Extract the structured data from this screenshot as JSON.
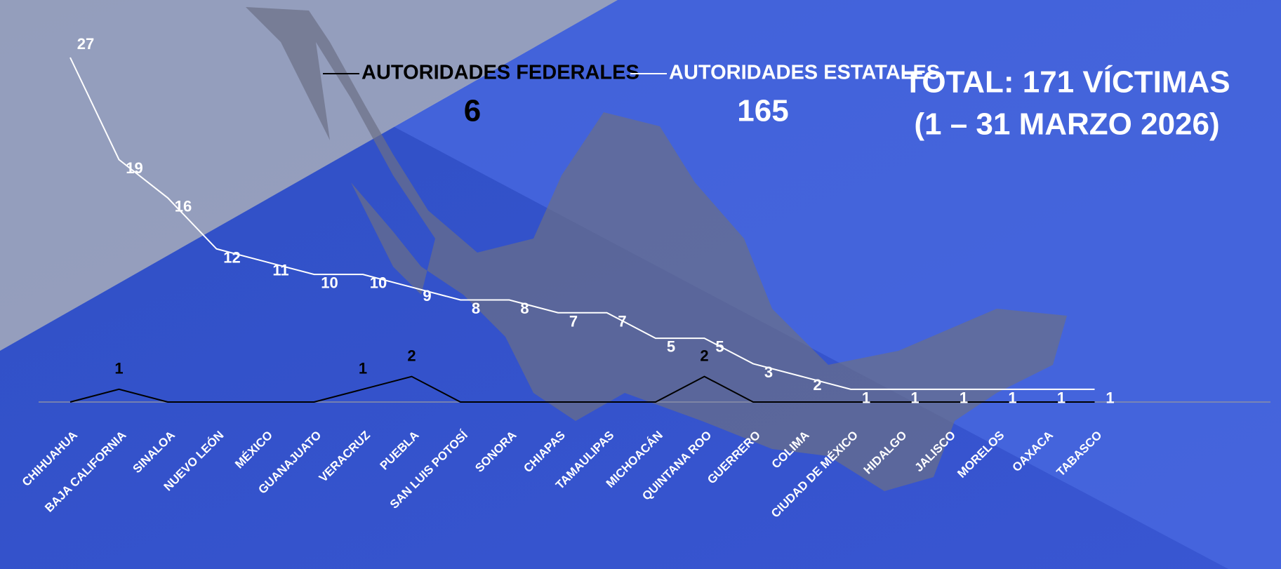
{
  "chart_data": {
    "type": "line",
    "title": "TOTAL: 171 VÍCTIMAS",
    "subtitle": "(1 – 31 MARZO 2026)",
    "categories": [
      "CHIHUAHUA",
      "BAJA CALIFORNIA",
      "SINALOA",
      "NUEVO LEÓN",
      "MÉXICO",
      "GUANAJUATO",
      "VERACRUZ",
      "PUEBLA",
      "SAN LUIS POTOSÍ",
      "SONORA",
      "CHIAPAS",
      "TAMAULIPAS",
      "MICHOACÁN",
      "QUINTANA ROO",
      "GUERRERO",
      "COLIMA",
      "CIUDAD DE MÉXICO",
      "HIDALGO",
      "JALISCO",
      "MORELOS",
      "OAXACA",
      "TABASCO"
    ],
    "series": [
      {
        "name": "AUTORIDADES FEDERALES",
        "total": 6,
        "color": "#000000",
        "values": [
          0,
          1,
          0,
          0,
          0,
          0,
          1,
          2,
          0,
          0,
          0,
          0,
          0,
          2,
          0,
          0,
          0,
          0,
          0,
          0,
          0,
          0
        ]
      },
      {
        "name": "AUTORIDADES ESTATALES",
        "total": 165,
        "color": "#ffffff",
        "values": [
          27,
          19,
          16,
          12,
          11,
          10,
          10,
          9,
          8,
          8,
          7,
          7,
          5,
          5,
          3,
          2,
          1,
          1,
          1,
          1,
          1,
          1
        ]
      }
    ],
    "ylim": [
      0,
      27
    ]
  }
}
